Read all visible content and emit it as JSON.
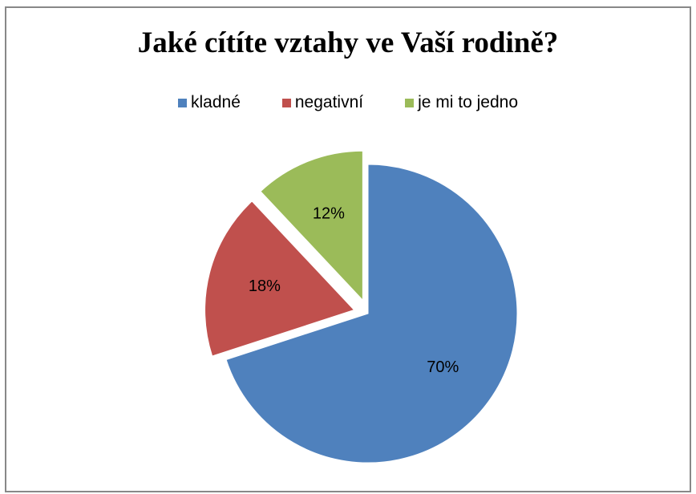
{
  "chart_data": {
    "type": "pie",
    "title": "Jaké cítíte vztahy ve Vaší rodině?",
    "categories": [
      "kladné",
      "negativní",
      "je mi to jedno"
    ],
    "values": [
      70,
      18,
      12
    ],
    "labels": [
      "70%",
      "18%",
      "12%"
    ],
    "colors": [
      "#4F81BD",
      "#C0504D",
      "#9BBB59"
    ],
    "legend_position": "top",
    "exploded": [
      false,
      true,
      true
    ]
  }
}
